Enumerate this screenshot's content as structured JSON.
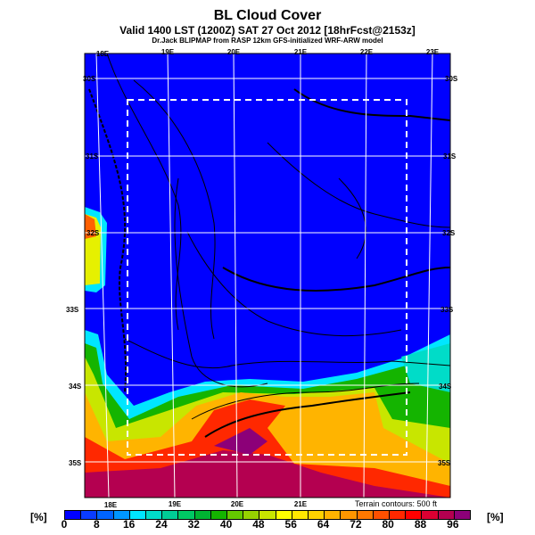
{
  "header": {
    "title": "BL Cloud Cover",
    "subtitle": "Valid 1400 LST (1200Z) SAT 27 Oct 2012 [18hrFcst@2153z]",
    "source": "Dr.Jack BLIPMAP from RASP 12km GFS-initialized WRF-ARW model"
  },
  "map": {
    "top_lon_labels": [
      "18E",
      "19E",
      "20E",
      "21E",
      "22E",
      "23E"
    ],
    "bottom_lon_labels": [
      "18E",
      "19E",
      "20E",
      "21E"
    ],
    "left_lat_labels": [
      "30S",
      "31S",
      "32S",
      "33S",
      "34S",
      "35S"
    ],
    "right_lat_labels": [
      "30S",
      "31S",
      "32S",
      "33S",
      "34S",
      "35S"
    ],
    "terrain_note": "Terrain contours: 500 ft"
  },
  "colorbar": {
    "unit_left": "[%]",
    "unit_right": "[%]",
    "min": 0,
    "max": 100,
    "step": 4,
    "labels": [
      "0",
      "8",
      "16",
      "24",
      "32",
      "40",
      "48",
      "56",
      "64",
      "72",
      "80",
      "88",
      "96"
    ],
    "colors": [
      "#0000ff",
      "#0a3cff",
      "#0064ff",
      "#0096ff",
      "#00e6ff",
      "#00dcc8",
      "#00cc96",
      "#00c864",
      "#00b432",
      "#14b400",
      "#64c800",
      "#96d200",
      "#c8e600",
      "#ffff00",
      "#ffe600",
      "#ffd200",
      "#ffb400",
      "#ff9600",
      "#ff7800",
      "#ff5000",
      "#ff2800",
      "#ff0000",
      "#dc0032",
      "#b40050",
      "#8c0078"
    ]
  }
}
